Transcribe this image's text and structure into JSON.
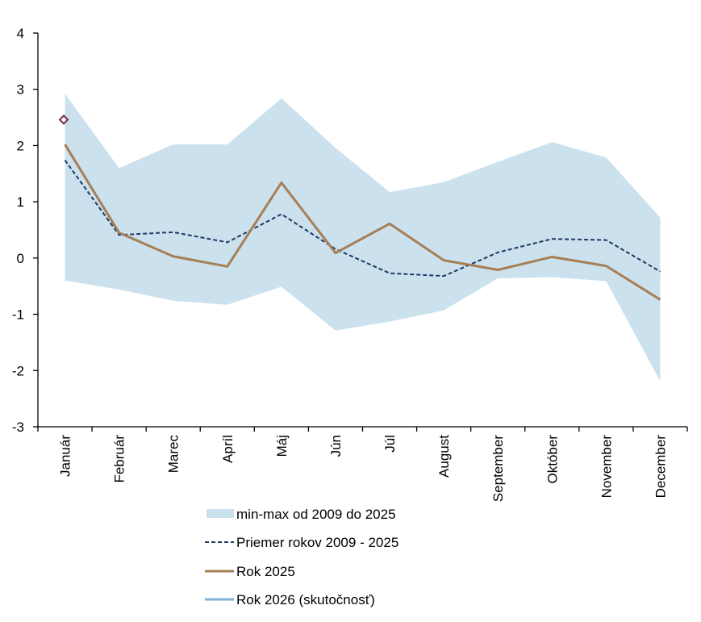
{
  "chart_data": {
    "type": "line",
    "title": "",
    "xlabel": "",
    "ylabel": "",
    "ylim": [
      -3,
      4
    ],
    "yticks": [
      4,
      3,
      2,
      1,
      0,
      -1,
      -2,
      -3
    ],
    "ytick_labels": [
      "4",
      "3",
      "2",
      "1",
      "0",
      "-1",
      "-2",
      "-3"
    ],
    "grid": false,
    "legend_position": "bottom-center",
    "categories": [
      "Január",
      "Február",
      "Marec",
      "Apríl",
      "Máj",
      "Jún",
      "Júl",
      "August",
      "September",
      "Október",
      "November",
      "December"
    ],
    "band": {
      "name": "min-max od 2009 do 2025",
      "color": "#cce1ee",
      "min": [
        -0.4,
        -0.56,
        -0.76,
        -0.83,
        -0.51,
        -1.29,
        -1.13,
        -0.93,
        -0.36,
        -0.34,
        -0.41,
        -2.19
      ],
      "max": [
        2.92,
        1.6,
        2.02,
        2.02,
        2.84,
        1.96,
        1.17,
        1.35,
        1.71,
        2.06,
        1.79,
        0.72
      ]
    },
    "series": [
      {
        "name": "Priemer rokov 2009 - 2025",
        "style": "dashed",
        "color": "#1f3864",
        "values": [
          1.74,
          0.41,
          0.46,
          0.28,
          0.78,
          0.16,
          -0.27,
          -0.32,
          0.1,
          0.34,
          0.32,
          -0.24
        ]
      },
      {
        "name": "Rok 2025",
        "style": "solid",
        "color": "#a67f55",
        "values": [
          2.02,
          0.45,
          0.03,
          -0.15,
          1.34,
          0.09,
          0.61,
          -0.04,
          -0.21,
          0.02,
          -0.14,
          -0.74
        ]
      },
      {
        "name": "Rok 2026 (skutočnosť)",
        "style": "solid",
        "color": "#7fb0d6",
        "marker": "diamond",
        "marker_color": "#7b2a48",
        "values": [
          2.46,
          null,
          null,
          null,
          null,
          null,
          null,
          null,
          null,
          null,
          null,
          null
        ]
      }
    ],
    "legend": [
      {
        "label": "min-max od 2009 do 2025",
        "symbol": "area",
        "color": "#cce1ee"
      },
      {
        "label": "Priemer rokov 2009 - 2025",
        "symbol": "dashed-line",
        "color": "#1f3864"
      },
      {
        "label": "Rok 2025",
        "symbol": "line",
        "color": "#a67f55"
      },
      {
        "label": "Rok 2026 (skutočnosť)",
        "symbol": "line",
        "color": "#7fb0d6"
      }
    ]
  }
}
